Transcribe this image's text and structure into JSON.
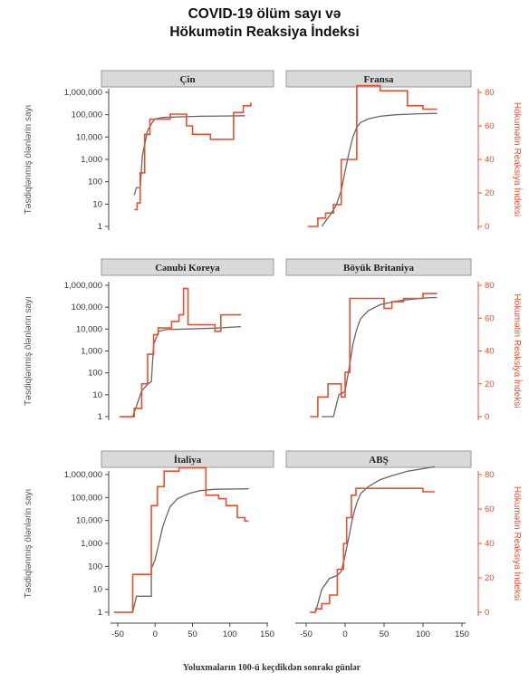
{
  "chart_data": {
    "type": "line",
    "title_lines": [
      "COVID-19 ölüm sayı və",
      "Hökumətin Reaksiya İndeksi"
    ],
    "xlabel": "Yoluxmaların 100-ü keçdikdən sonrakı günlər",
    "ylabel_left": "Təsdiqlənmiş ölənlərin sayı",
    "ylabel_right": "Hökumətin Reaksiya İndeksi",
    "x_ticks": [
      -50,
      0,
      50,
      100,
      150
    ],
    "xlim": [
      -62,
      152
    ],
    "y_left_ticks": [
      1,
      10,
      100,
      1000,
      10000,
      100000,
      1000000
    ],
    "y_left_tick_labels": [
      "1",
      "10",
      "100",
      "1,000",
      "10,000",
      "100,000",
      "1,000,000"
    ],
    "y_left_scale": "log",
    "y_right_ticks": [
      0,
      20,
      40,
      60,
      80
    ],
    "y_right_ticks_zero_label": "0",
    "ylim_right": [
      -2,
      86
    ],
    "colors": {
      "deaths": "#666666",
      "index": "#e8502e",
      "strip": "#d9d9d9"
    },
    "panels": [
      {
        "name": "Çin",
        "deaths": [
          [
            -28,
            25
          ],
          [
            -25,
            55
          ],
          [
            -20,
            55
          ],
          [
            -17,
            1500
          ],
          [
            -10,
            20000
          ],
          [
            -3,
            50000
          ],
          [
            0,
            65000
          ],
          [
            10,
            75000
          ],
          [
            30,
            80000
          ],
          [
            60,
            85000
          ],
          [
            120,
            90000
          ]
        ],
        "index": [
          [
            -28,
            10
          ],
          [
            -24,
            10
          ],
          [
            -24,
            14
          ],
          [
            -20,
            14
          ],
          [
            -20,
            32
          ],
          [
            -14,
            32
          ],
          [
            -14,
            55
          ],
          [
            -7,
            55
          ],
          [
            -7,
            64
          ],
          [
            20,
            64
          ],
          [
            20,
            67
          ],
          [
            42,
            67
          ],
          [
            42,
            60
          ],
          [
            50,
            60
          ],
          [
            50,
            55
          ],
          [
            74,
            55
          ],
          [
            74,
            52
          ],
          [
            105,
            52
          ],
          [
            105,
            68
          ],
          [
            118,
            68
          ],
          [
            118,
            72
          ],
          [
            128,
            72
          ],
          [
            128,
            74
          ]
        ]
      },
      {
        "name": "Fransa",
        "deaths": [
          [
            -30,
            1
          ],
          [
            -20,
            3
          ],
          [
            -12,
            8
          ],
          [
            -5,
            40
          ],
          [
            0,
            300
          ],
          [
            5,
            2000
          ],
          [
            10,
            10000
          ],
          [
            15,
            28000
          ],
          [
            20,
            45000
          ],
          [
            30,
            65000
          ],
          [
            45,
            85000
          ],
          [
            65,
            100000
          ],
          [
            95,
            110000
          ],
          [
            118,
            115000
          ]
        ],
        "index": [
          [
            -48,
            0
          ],
          [
            -35,
            0
          ],
          [
            -35,
            5
          ],
          [
            -25,
            5
          ],
          [
            -25,
            8
          ],
          [
            -15,
            8
          ],
          [
            -15,
            13
          ],
          [
            -5,
            13
          ],
          [
            -5,
            40
          ],
          [
            15,
            40
          ],
          [
            15,
            84
          ],
          [
            45,
            84
          ],
          [
            45,
            81
          ],
          [
            80,
            81
          ],
          [
            80,
            72
          ],
          [
            100,
            72
          ],
          [
            100,
            70
          ],
          [
            118,
            70
          ]
        ]
      },
      {
        "name": "Cənubi Koreya",
        "deaths": [
          [
            -45,
            1
          ],
          [
            -30,
            1
          ],
          [
            -25,
            3
          ],
          [
            -18,
            15
          ],
          [
            -10,
            30
          ],
          [
            -5,
            40
          ],
          [
            -2,
            2000
          ],
          [
            5,
            8000
          ],
          [
            15,
            9500
          ],
          [
            40,
            10000
          ],
          [
            80,
            11000
          ],
          [
            115,
            13000
          ]
        ],
        "index": [
          [
            -48,
            0
          ],
          [
            -28,
            0
          ],
          [
            -28,
            5
          ],
          [
            -18,
            5
          ],
          [
            -18,
            20
          ],
          [
            -10,
            20
          ],
          [
            -10,
            38
          ],
          [
            -2,
            38
          ],
          [
            -2,
            50
          ],
          [
            4,
            50
          ],
          [
            4,
            54
          ],
          [
            22,
            54
          ],
          [
            22,
            58
          ],
          [
            32,
            58
          ],
          [
            32,
            62
          ],
          [
            38,
            62
          ],
          [
            38,
            78
          ],
          [
            44,
            78
          ],
          [
            44,
            56
          ],
          [
            80,
            56
          ],
          [
            80,
            52
          ],
          [
            88,
            52
          ],
          [
            88,
            62
          ],
          [
            115,
            62
          ]
        ]
      },
      {
        "name": "Böyük Britaniya",
        "deaths": [
          [
            -30,
            1
          ],
          [
            -15,
            1
          ],
          [
            -8,
            10
          ],
          [
            -3,
            12
          ],
          [
            0,
            15
          ],
          [
            5,
            150
          ],
          [
            10,
            2000
          ],
          [
            15,
            10000
          ],
          [
            20,
            30000
          ],
          [
            30,
            70000
          ],
          [
            45,
            130000
          ],
          [
            70,
            200000
          ],
          [
            100,
            260000
          ],
          [
            118,
            280000
          ]
        ],
        "index": [
          [
            -45,
            0
          ],
          [
            -35,
            0
          ],
          [
            -35,
            12
          ],
          [
            -22,
            12
          ],
          [
            -22,
            20
          ],
          [
            -5,
            20
          ],
          [
            -5,
            12
          ],
          [
            0,
            12
          ],
          [
            0,
            27
          ],
          [
            6,
            27
          ],
          [
            6,
            72
          ],
          [
            50,
            72
          ],
          [
            50,
            66
          ],
          [
            60,
            66
          ],
          [
            60,
            70
          ],
          [
            75,
            70
          ],
          [
            75,
            72
          ],
          [
            100,
            72
          ],
          [
            100,
            75
          ],
          [
            118,
            75
          ]
        ]
      },
      {
        "name": "İtaliya",
        "deaths": [
          [
            -55,
            1
          ],
          [
            -30,
            1
          ],
          [
            -25,
            5
          ],
          [
            -5,
            5
          ],
          [
            -5,
            80
          ],
          [
            0,
            200
          ],
          [
            5,
            1000
          ],
          [
            10,
            5000
          ],
          [
            15,
            15000
          ],
          [
            20,
            40000
          ],
          [
            30,
            90000
          ],
          [
            45,
            150000
          ],
          [
            60,
            200000
          ],
          [
            80,
            230000
          ],
          [
            125,
            240000
          ]
        ],
        "index": [
          [
            -55,
            0
          ],
          [
            -30,
            0
          ],
          [
            -30,
            22
          ],
          [
            -5,
            22
          ],
          [
            -5,
            62
          ],
          [
            3,
            62
          ],
          [
            3,
            73
          ],
          [
            12,
            73
          ],
          [
            12,
            82
          ],
          [
            32,
            82
          ],
          [
            32,
            84
          ],
          [
            68,
            84
          ],
          [
            68,
            68
          ],
          [
            85,
            68
          ],
          [
            85,
            66
          ],
          [
            95,
            66
          ],
          [
            95,
            62
          ],
          [
            110,
            62
          ],
          [
            110,
            55
          ],
          [
            120,
            55
          ],
          [
            120,
            53
          ],
          [
            125,
            53
          ]
        ]
      },
      {
        "name": "ABŞ",
        "deaths": [
          [
            -45,
            1
          ],
          [
            -38,
            1
          ],
          [
            -30,
            10
          ],
          [
            -20,
            30
          ],
          [
            -10,
            40
          ],
          [
            -5,
            60
          ],
          [
            0,
            300
          ],
          [
            5,
            2000
          ],
          [
            10,
            15000
          ],
          [
            15,
            60000
          ],
          [
            20,
            150000
          ],
          [
            30,
            300000
          ],
          [
            45,
            600000
          ],
          [
            60,
            900000
          ],
          [
            80,
            1400000
          ],
          [
            100,
            1800000
          ],
          [
            115,
            2200000
          ]
        ],
        "index": [
          [
            -45,
            0
          ],
          [
            -38,
            0
          ],
          [
            -38,
            2
          ],
          [
            -30,
            2
          ],
          [
            -30,
            5
          ],
          [
            -20,
            5
          ],
          [
            -20,
            10
          ],
          [
            -10,
            10
          ],
          [
            -10,
            25
          ],
          [
            -2,
            25
          ],
          [
            -2,
            40
          ],
          [
            2,
            40
          ],
          [
            2,
            55
          ],
          [
            8,
            55
          ],
          [
            8,
            68
          ],
          [
            14,
            68
          ],
          [
            14,
            72
          ],
          [
            100,
            72
          ],
          [
            100,
            70
          ],
          [
            115,
            70
          ]
        ]
      }
    ]
  }
}
